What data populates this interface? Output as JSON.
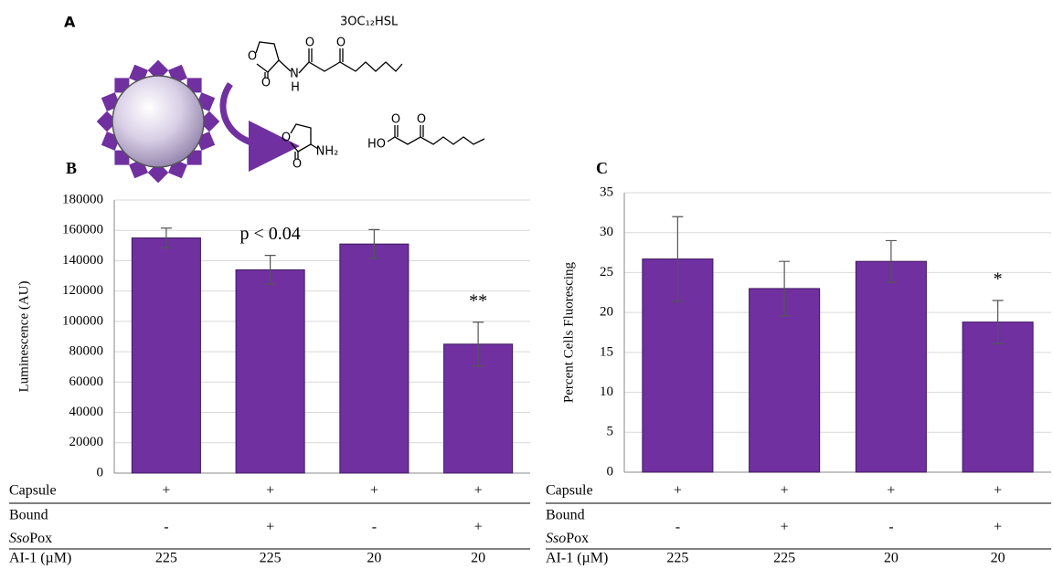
{
  "panel_a": {
    "label": "A",
    "substrate_name": "3OC₁₂HSL",
    "substrate_atoms": [
      "O",
      "O",
      "N",
      "H",
      "O",
      "O"
    ],
    "product_atoms": [
      "O",
      "O",
      "NH₂",
      "HO",
      "O",
      "O"
    ]
  },
  "chart_data": [
    {
      "type": "bar",
      "panel_label": "B",
      "y_label": "Luminescence  (AU)",
      "ylim": [
        0,
        180000
      ],
      "yticks": [
        0,
        20000,
        40000,
        60000,
        80000,
        100000,
        120000,
        140000,
        160000,
        180000
      ],
      "grid": true,
      "color": "#7030a0",
      "values": [
        155000,
        134000,
        151000,
        85000
      ],
      "errors": [
        6500,
        9500,
        9500,
        14500
      ],
      "bar_annotations": [
        null,
        "p < 0.04",
        null,
        "**"
      ],
      "conditions": [
        {
          "label": "Capsule",
          "cells": [
            "+",
            "+",
            "+",
            "+"
          ]
        },
        {
          "label": "Bound",
          "label_italic": "Sso",
          "label_rest": "Pox",
          "cells": [
            "-",
            "+",
            "-",
            "+"
          ]
        },
        {
          "label": "AI-1 (µM)",
          "cells": [
            "225",
            "225",
            "20",
            "20"
          ]
        }
      ]
    },
    {
      "type": "bar",
      "panel_label": "C",
      "y_label": "Percent Cells Fluorescing",
      "ylim": [
        0,
        35
      ],
      "yticks": [
        0,
        5,
        10,
        15,
        20,
        25,
        30,
        35
      ],
      "grid": true,
      "color": "#7030a0",
      "values": [
        26.7,
        23,
        26.4,
        18.8
      ],
      "errors": [
        5.3,
        3.4,
        2.6,
        2.7
      ],
      "bar_annotations": [
        null,
        null,
        null,
        "*"
      ],
      "conditions": [
        {
          "label": "Capsule",
          "cells": [
            "+",
            "+",
            "+",
            "+"
          ]
        },
        {
          "label": "Bound",
          "label_italic": "Sso",
          "label_rest": "Pox",
          "cells": [
            "-",
            "+",
            "-",
            "+"
          ]
        },
        {
          "label": "AI-1 (µM)",
          "cells": [
            "225",
            "225",
            "20",
            "20"
          ]
        }
      ]
    }
  ]
}
